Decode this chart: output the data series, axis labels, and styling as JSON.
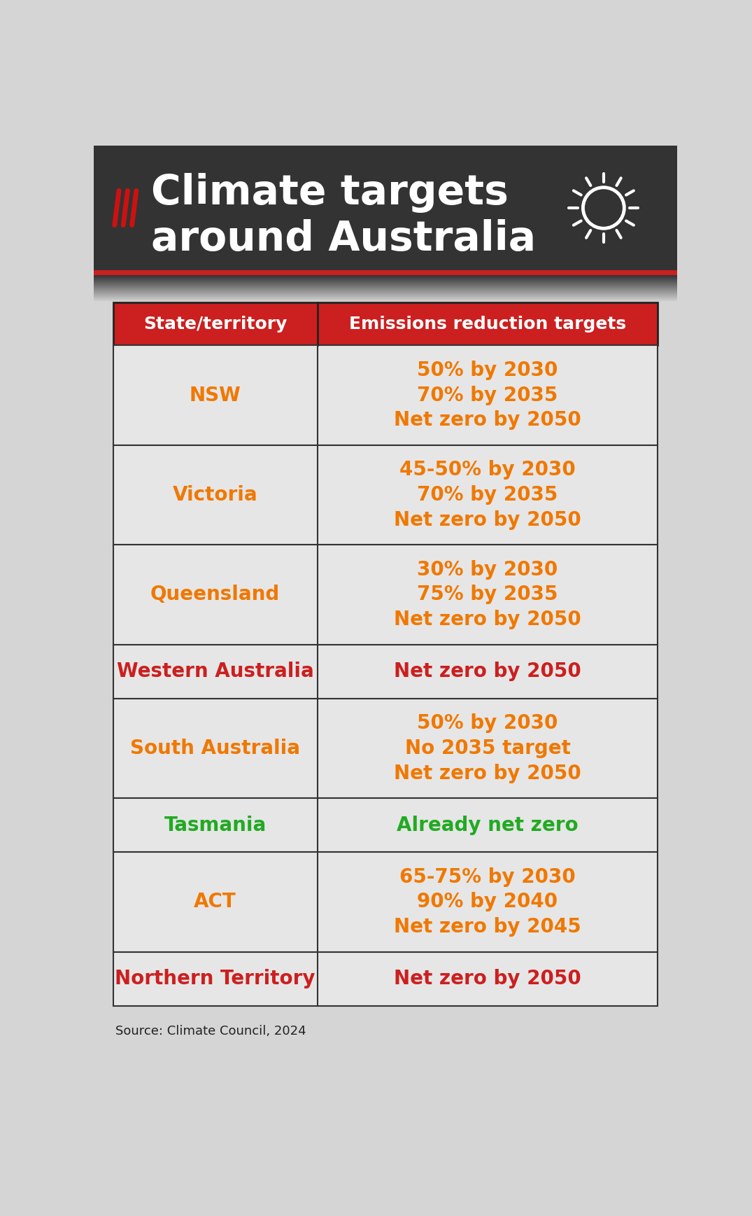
{
  "title_line1": "Climate targets",
  "title_line2": "around Australia",
  "header_col1": "State/territory",
  "header_col2": "Emissions reduction targets",
  "header_bg": "#cc1f1f",
  "header_text_color": "#ffffff",
  "title_bg": "#333333",
  "body_bg": "#d5d5d5",
  "cell_bg": "#e6e6e6",
  "border_color": "#555555",
  "source_text": "Source: Climate Council, 2024",
  "red_bar_color": "#cc1f1f",
  "title_fontsize": 42,
  "header_fontsize": 18,
  "cell_fontsize": 20,
  "rows": [
    {
      "state": "NSW",
      "state_color": "#f07800",
      "targets": [
        "50% by 2030",
        "70% by 2035",
        "Net zero by 2050"
      ],
      "target_colors": [
        "#f07800",
        "#f07800",
        "#f07800"
      ],
      "n_lines": 3
    },
    {
      "state": "Victoria",
      "state_color": "#f07800",
      "targets": [
        "45-50% by 2030",
        "70% by 2035",
        "Net zero by 2050"
      ],
      "target_colors": [
        "#f07800",
        "#f07800",
        "#f07800"
      ],
      "n_lines": 3
    },
    {
      "state": "Queensland",
      "state_color": "#f07800",
      "targets": [
        "30% by 2030",
        "75% by 2035",
        "Net zero by 2050"
      ],
      "target_colors": [
        "#f07800",
        "#f07800",
        "#f07800"
      ],
      "n_lines": 3
    },
    {
      "state": "Western Australia",
      "state_color": "#cc1f1f",
      "targets": [
        "Net zero by 2050"
      ],
      "target_colors": [
        "#cc1f1f"
      ],
      "n_lines": 1
    },
    {
      "state": "South Australia",
      "state_color": "#f07800",
      "targets": [
        "50% by 2030",
        "No 2035 target",
        "Net zero by 2050"
      ],
      "target_colors": [
        "#f07800",
        "#f07800",
        "#f07800"
      ],
      "n_lines": 3
    },
    {
      "state": "Tasmania",
      "state_color": "#22aa22",
      "targets": [
        "Already net zero"
      ],
      "target_colors": [
        "#22aa22"
      ],
      "n_lines": 1
    },
    {
      "state": "ACT",
      "state_color": "#f07800",
      "targets": [
        "65-75% by 2030",
        "90% by 2040",
        "Net zero by 2045"
      ],
      "target_colors": [
        "#f07800",
        "#f07800",
        "#f07800"
      ],
      "n_lines": 3
    },
    {
      "state": "Northern Territory",
      "state_color": "#cc1f1f",
      "targets": [
        "Net zero by 2050"
      ],
      "target_colors": [
        "#cc1f1f"
      ],
      "n_lines": 1
    }
  ]
}
